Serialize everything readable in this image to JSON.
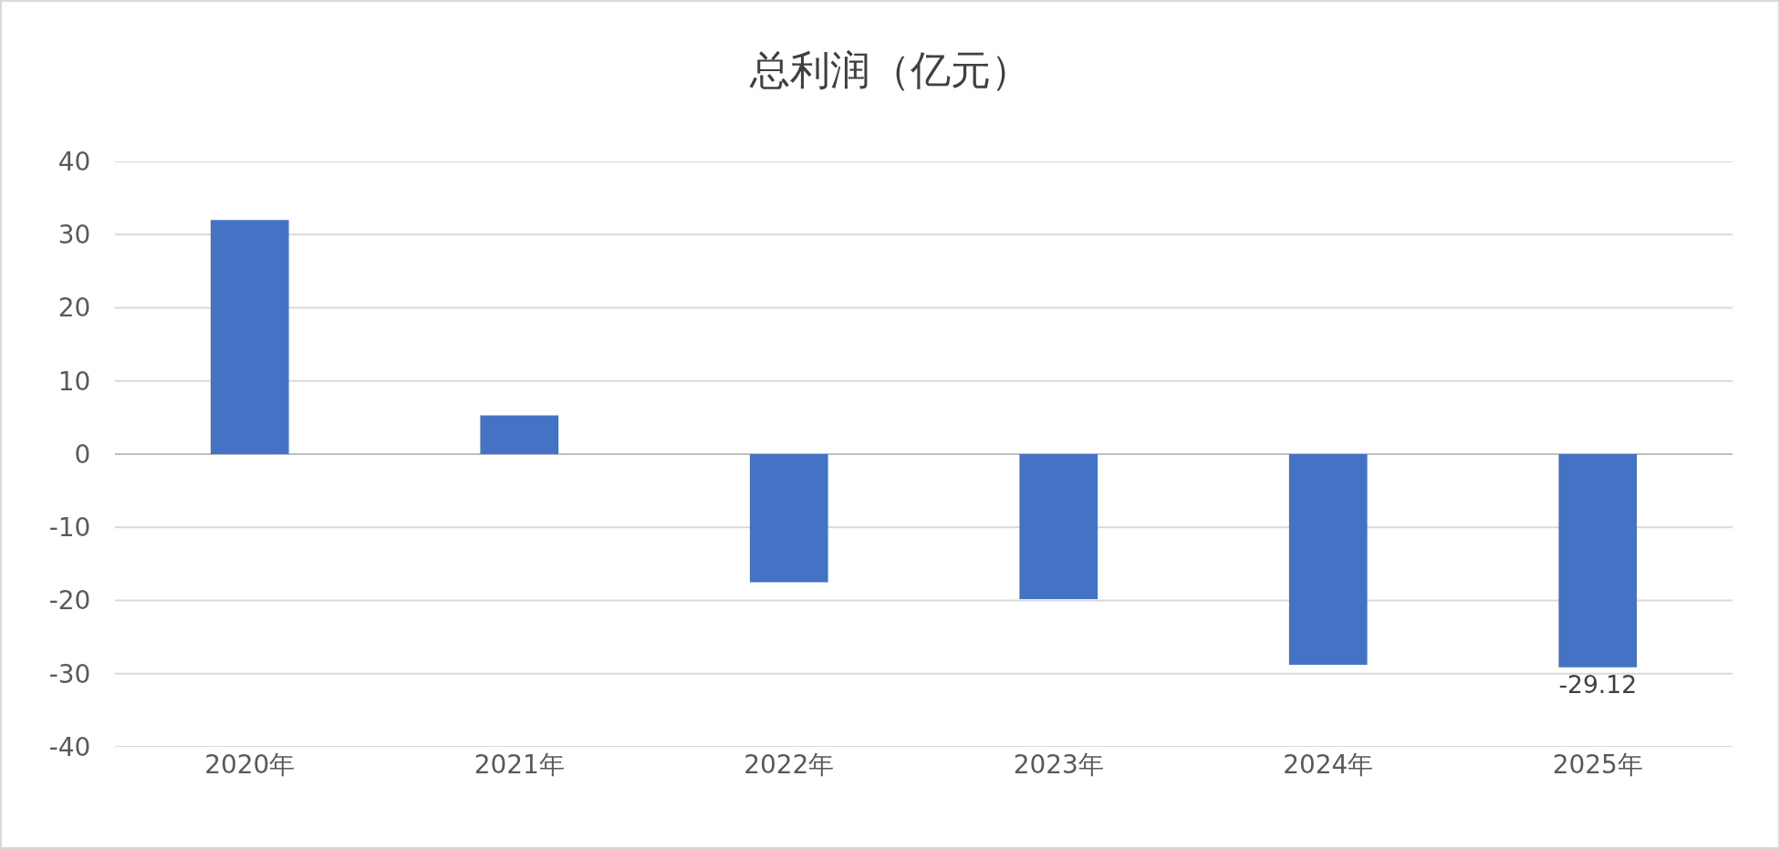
{
  "chart_data": {
    "type": "bar",
    "title": "总利润（亿元）",
    "categories": [
      "2020年",
      "2021年",
      "2022年",
      "2023年",
      "2024年",
      "2025年"
    ],
    "values": [
      32,
      5.3,
      -17.5,
      -19.8,
      -28.8,
      -29.12
    ],
    "value_labels": [
      null,
      null,
      null,
      null,
      null,
      "-29.12"
    ],
    "color": "#4472c4",
    "ylim": [
      -40,
      40
    ],
    "yticks": [
      -40,
      -30,
      -20,
      -10,
      0,
      10,
      20,
      30,
      40
    ],
    "grid": "y"
  }
}
